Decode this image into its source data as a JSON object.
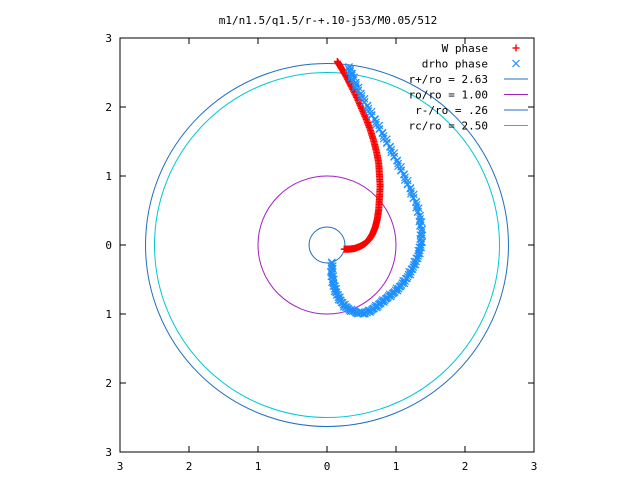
{
  "chart_data": {
    "type": "scatter",
    "title": "m1/n1.5/q1.5/r-+.10-j53/M0.05/512",
    "xlabel": "",
    "ylabel": "",
    "xlim": [
      -3,
      3
    ],
    "ylim": [
      -3,
      3
    ],
    "x_ticks": [
      {
        "value": -3,
        "label": "3"
      },
      {
        "value": -2,
        "label": "2"
      },
      {
        "value": -1,
        "label": "1"
      },
      {
        "value": 0,
        "label": "0"
      },
      {
        "value": 1,
        "label": "1"
      },
      {
        "value": 2,
        "label": "2"
      },
      {
        "value": 3,
        "label": "3"
      }
    ],
    "y_ticks": [
      {
        "value": 3,
        "label": "3"
      },
      {
        "value": 2,
        "label": "2"
      },
      {
        "value": 1,
        "label": "1"
      },
      {
        "value": 0,
        "label": "0"
      },
      {
        "value": -1,
        "label": "1"
      },
      {
        "value": -2,
        "label": "2"
      },
      {
        "value": -3,
        "label": "3"
      }
    ],
    "grid": false,
    "legend_position": "top-right",
    "series": [
      {
        "name": "W phase",
        "kind": "points",
        "marker": "plus",
        "color": "#ff0000",
        "points": [
          [
            0.25,
            -0.06
          ],
          [
            0.32,
            -0.06
          ],
          [
            0.4,
            -0.05
          ],
          [
            0.48,
            -0.02
          ],
          [
            0.55,
            0.02
          ],
          [
            0.61,
            0.08
          ],
          [
            0.66,
            0.16
          ],
          [
            0.7,
            0.26
          ],
          [
            0.73,
            0.38
          ],
          [
            0.75,
            0.52
          ],
          [
            0.76,
            0.68
          ],
          [
            0.77,
            0.85
          ],
          [
            0.76,
            1.02
          ],
          [
            0.75,
            1.18
          ],
          [
            0.72,
            1.34
          ],
          [
            0.68,
            1.5
          ],
          [
            0.63,
            1.66
          ],
          [
            0.57,
            1.82
          ],
          [
            0.5,
            1.98
          ],
          [
            0.43,
            2.14
          ],
          [
            0.35,
            2.3
          ],
          [
            0.28,
            2.44
          ],
          [
            0.21,
            2.56
          ],
          [
            0.15,
            2.66
          ]
        ]
      },
      {
        "name": "drho phase",
        "kind": "points",
        "marker": "cross",
        "color": "#1e90ff",
        "points": [
          [
            0.07,
            -0.25
          ],
          [
            0.07,
            -0.4
          ],
          [
            0.09,
            -0.55
          ],
          [
            0.13,
            -0.68
          ],
          [
            0.19,
            -0.8
          ],
          [
            0.27,
            -0.9
          ],
          [
            0.37,
            -0.96
          ],
          [
            0.48,
            -0.99
          ],
          [
            0.58,
            -0.98
          ],
          [
            0.68,
            -0.92
          ],
          [
            0.78,
            -0.84
          ],
          [
            0.88,
            -0.76
          ],
          [
            0.98,
            -0.68
          ],
          [
            1.08,
            -0.58
          ],
          [
            1.17,
            -0.46
          ],
          [
            1.25,
            -0.32
          ],
          [
            1.32,
            -0.16
          ],
          [
            1.36,
            0.0
          ],
          [
            1.37,
            0.18
          ],
          [
            1.35,
            0.38
          ],
          [
            1.3,
            0.58
          ],
          [
            1.22,
            0.78
          ],
          [
            1.13,
            0.98
          ],
          [
            1.03,
            1.18
          ],
          [
            0.93,
            1.38
          ],
          [
            0.82,
            1.58
          ],
          [
            0.71,
            1.78
          ],
          [
            0.6,
            1.98
          ],
          [
            0.5,
            2.16
          ],
          [
            0.42,
            2.32
          ],
          [
            0.36,
            2.46
          ],
          [
            0.32,
            2.58
          ]
        ]
      },
      {
        "name": "r+/ro = 2.63",
        "kind": "circle",
        "radius": 2.63,
        "color": "#1f6fbf"
      },
      {
        "name": "ro/ro = 1.00",
        "kind": "circle",
        "radius": 1.0,
        "color": "#a020c0"
      },
      {
        "name": "r-/ro = .26",
        "kind": "circle",
        "radius": 0.26,
        "color": "#1f6fbf"
      },
      {
        "name": "rc/ro = 2.50",
        "kind": "circle",
        "radius": 2.5,
        "color": "#00c8d0"
      }
    ]
  }
}
